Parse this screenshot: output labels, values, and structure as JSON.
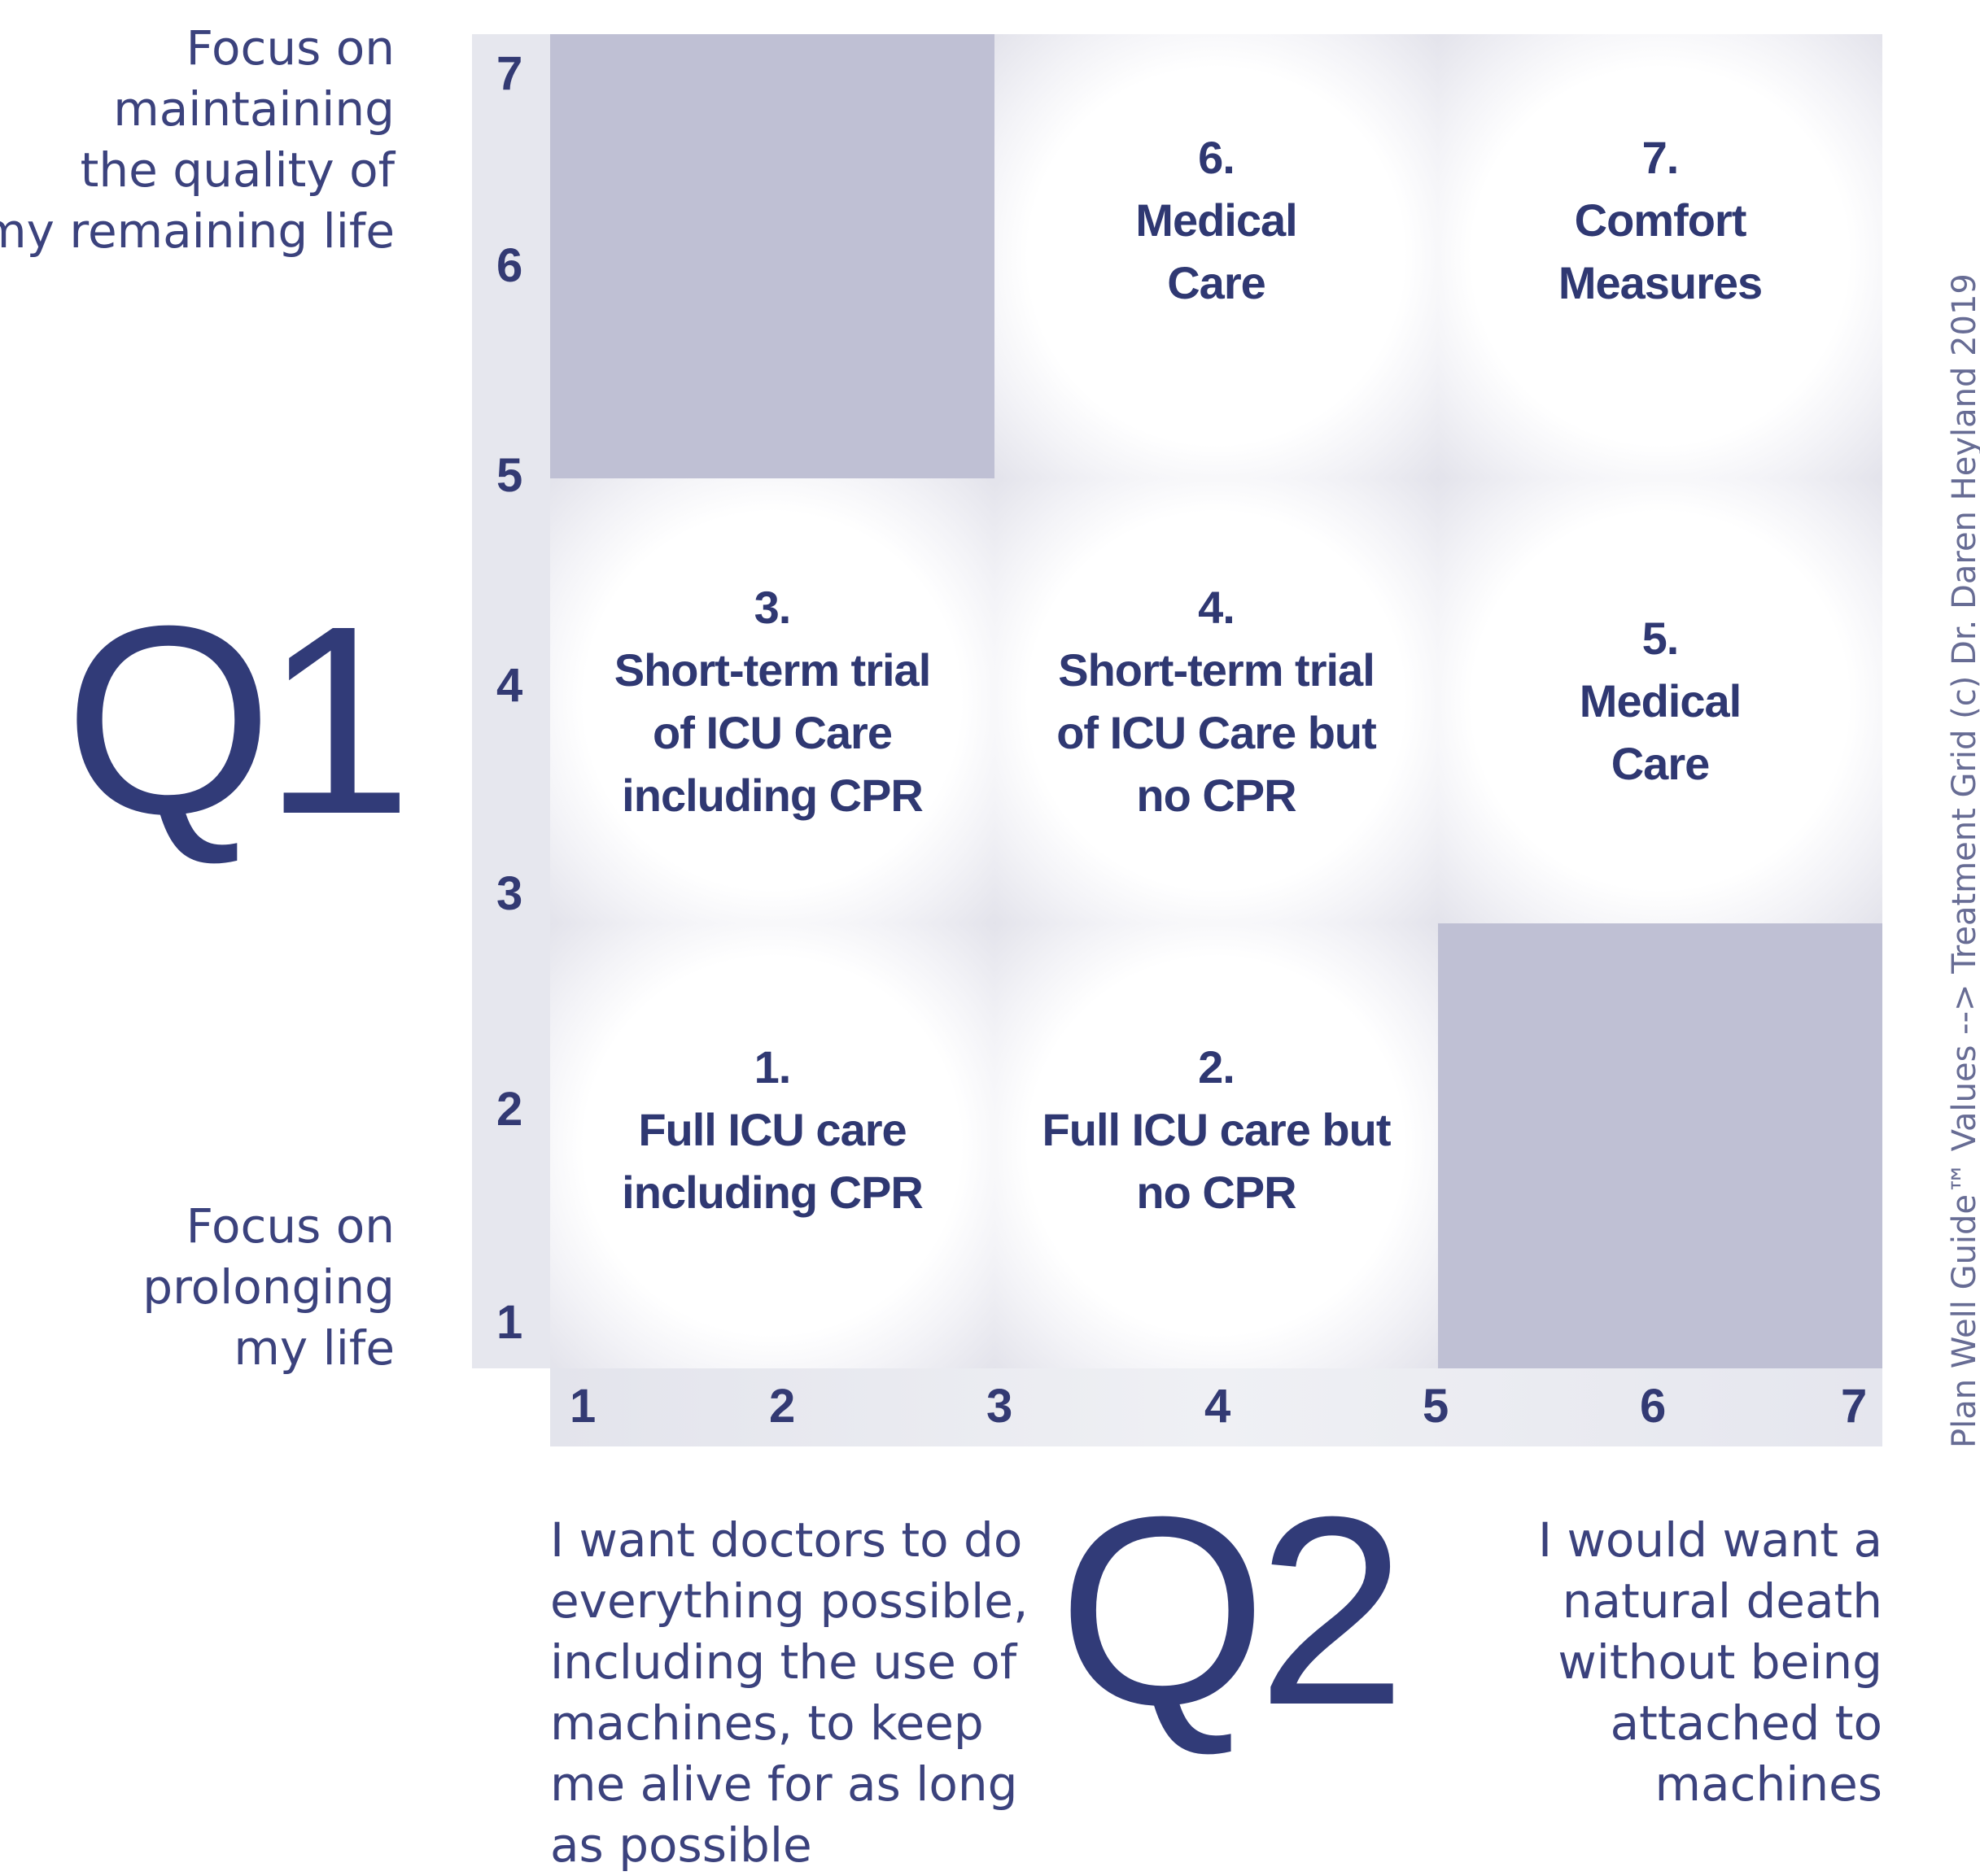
{
  "y_axis": {
    "title": "Q1",
    "top_label": [
      "Focus on",
      "maintaining",
      "the quality of",
      "my remaining life"
    ],
    "bottom_label": [
      "Focus on",
      "prolonging",
      "my life"
    ],
    "ticks": [
      "7",
      "6",
      "5",
      "4",
      "3",
      "2",
      "1"
    ]
  },
  "x_axis": {
    "title": "Q2",
    "left_label": [
      "I want doctors to do",
      "everything possible,",
      "including the use of",
      "machines, to keep",
      "me alive for as long",
      "as possible"
    ],
    "right_label": [
      "I would want a",
      "natural death",
      "without being",
      "attached to",
      "machines"
    ],
    "ticks": [
      "1",
      "2",
      "3",
      "4",
      "5",
      "6",
      "7"
    ]
  },
  "grid": {
    "cells": [
      {
        "row": "top",
        "col": "left",
        "shaded": true,
        "lines": []
      },
      {
        "row": "top",
        "col": "middle",
        "shaded": false,
        "lines": [
          "6.",
          "Medical",
          "Care"
        ]
      },
      {
        "row": "top",
        "col": "right",
        "shaded": false,
        "lines": [
          "7.",
          "Comfort",
          "Measures"
        ]
      },
      {
        "row": "middle",
        "col": "left",
        "shaded": false,
        "lines": [
          "3.",
          "Short-term trial",
          "of ICU Care",
          "including CPR"
        ]
      },
      {
        "row": "middle",
        "col": "middle",
        "shaded": false,
        "lines": [
          "4.",
          "Short-term trial",
          "of ICU Care but",
          "no CPR"
        ]
      },
      {
        "row": "middle",
        "col": "right",
        "shaded": false,
        "lines": [
          "5.",
          "Medical",
          "Care"
        ]
      },
      {
        "row": "bottom",
        "col": "left",
        "shaded": false,
        "lines": [
          "1.",
          "Full ICU care",
          "including CPR"
        ]
      },
      {
        "row": "bottom",
        "col": "middle",
        "shaded": false,
        "lines": [
          "2.",
          "Full ICU care but",
          "no CPR"
        ]
      },
      {
        "row": "bottom",
        "col": "right",
        "shaded": true,
        "lines": []
      }
    ]
  },
  "credit": "Plan Well Guide™ Values --> Treatment Grid (c) Dr. Daren Heyland 2019",
  "colors": {
    "text": "#333a73",
    "shaded_cell": "#bfc0d4",
    "axis_band": "#e6e7ee",
    "credit_text": "#676c94"
  }
}
